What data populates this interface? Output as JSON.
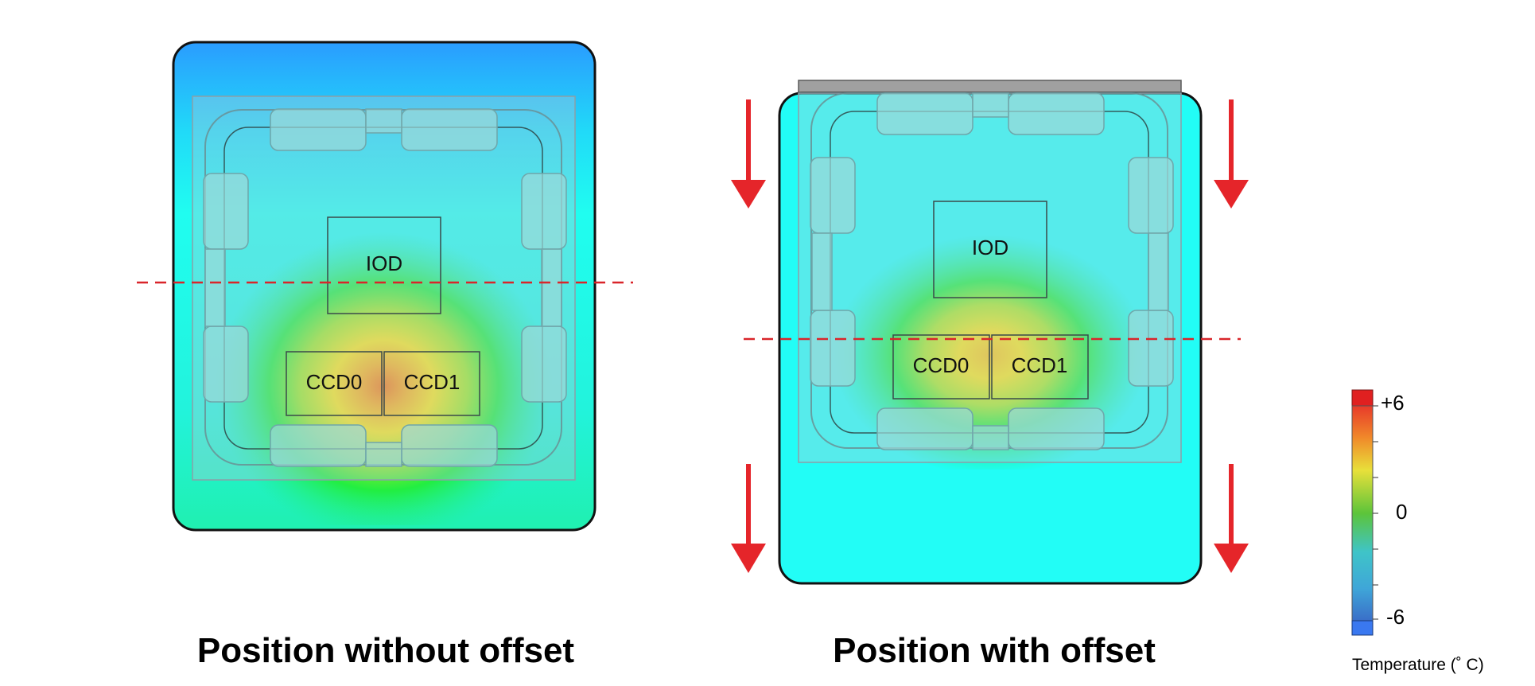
{
  "diagrams": [
    {
      "caption": "Position without offset",
      "iod_label": "IOD",
      "ccd0_label": "CCD0",
      "ccd1_label": "CCD1"
    },
    {
      "caption": "Position with offset",
      "iod_label": "IOD",
      "ccd0_label": "CCD0",
      "ccd1_label": "CCD1"
    }
  ],
  "legend": {
    "title": "Temperature (˚ C)",
    "max_label": "+6",
    "mid_label": "0",
    "min_label": "-6"
  },
  "colors": {
    "arrow": "#e5252a",
    "dashed_line": "#d9252a",
    "hot": "#f07a1a",
    "warm": "#f5e61e",
    "mid": "#22ee33",
    "cool": "#22ffee",
    "cold": "#2aa0ff"
  }
}
